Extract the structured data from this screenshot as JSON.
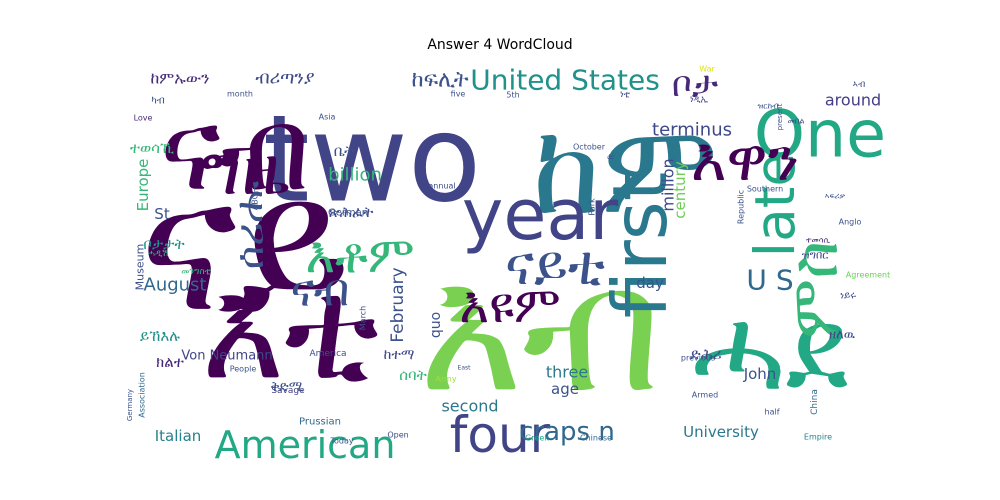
{
  "chart_data": {
    "type": "wordcloud",
    "title": "Answer 4 WordCloud",
    "colormap": "viridis",
    "background": "#ffffff",
    "words": [
      {
        "text": "ናይ",
        "weight": 1.0,
        "color": "#440154"
      },
      {
        "text": "two",
        "weight": 0.92,
        "color": "#414487"
      },
      {
        "text": "እቲ",
        "weight": 0.82,
        "color": "#440154"
      },
      {
        "text": "እብ",
        "weight": 0.8,
        "color": "#7ad151"
      },
      {
        "text": "ከም",
        "weight": 0.72,
        "color": "#2a788e"
      },
      {
        "text": "ናብ",
        "weight": 0.7,
        "color": "#440154"
      },
      {
        "text": "ሓደ",
        "weight": 0.66,
        "color": "#22a884"
      },
      {
        "text": "year",
        "weight": 0.6,
        "color": "#414487"
      },
      {
        "text": "One",
        "weight": 0.46,
        "color": "#22a884"
      },
      {
        "text": "four",
        "weight": 0.4,
        "color": "#414487"
      },
      {
        "text": "first",
        "weight": 0.4,
        "color": "#2a788e"
      },
      {
        "text": "late",
        "weight": 0.38,
        "color": "#22a884"
      },
      {
        "text": "እዋን",
        "weight": 0.36,
        "color": "#440154"
      },
      {
        "text": "ግዜ",
        "weight": 0.34,
        "color": "#440154"
      },
      {
        "text": "ናይቲ",
        "weight": 0.3,
        "color": "#3b528b"
      },
      {
        "text": "American",
        "weight": 0.3,
        "color": "#22a884"
      },
      {
        "text": "እዩም",
        "weight": 0.28,
        "color": "#440154"
      },
      {
        "text": "ምስ",
        "weight": 0.28,
        "color": "#35b779"
      },
      {
        "text": "United States",
        "weight": 0.2,
        "color": "#21918c"
      },
      {
        "text": "ቦታ",
        "weight": 0.2,
        "color": "#482878"
      },
      {
        "text": "እቶም",
        "weight": 0.24,
        "color": "#35b779"
      },
      {
        "text": "ናብ ",
        "weight": 0.26,
        "color": "#3b528b"
      },
      {
        "text": "ሰሪሑ",
        "weight": 0.22,
        "color": "#3b528b"
      },
      {
        "text": "craps n",
        "weight": 0.18,
        "color": "#31688e"
      },
      {
        "text": "U S",
        "weight": 0.17,
        "color": "#31688e"
      },
      {
        "text": "ከፍሊት",
        "weight": 0.13,
        "color": "#3b528b"
      },
      {
        "text": "ብሪጣንያ",
        "weight": 0.11,
        "color": "#3e4989"
      },
      {
        "text": "ከምኡውን",
        "weight": 0.1,
        "color": "#472c7a"
      },
      {
        "text": "billion",
        "weight": 0.1,
        "color": "#35b779"
      },
      {
        "text": "August",
        "weight": 0.1,
        "color": "#31688e"
      },
      {
        "text": "February",
        "weight": 0.1,
        "color": "#3b528b"
      },
      {
        "text": "terminus",
        "weight": 0.1,
        "color": "#3e4989"
      },
      {
        "text": "around",
        "weight": 0.09,
        "color": "#433e85"
      },
      {
        "text": "Europe",
        "weight": 0.09,
        "color": "#35b779"
      },
      {
        "text": "million",
        "weight": 0.09,
        "color": "#3e4989"
      },
      {
        "text": "century",
        "weight": 0.08,
        "color": "#6ece58"
      },
      {
        "text": "three",
        "weight": 0.08,
        "color": "#2a788e"
      },
      {
        "text": "second",
        "weight": 0.08,
        "color": "#2a788e"
      },
      {
        "text": "age",
        "weight": 0.08,
        "color": "#3b528b"
      },
      {
        "text": "day",
        "weight": 0.08,
        "color": "#3b528b"
      },
      {
        "text": "Italian",
        "weight": 0.08,
        "color": "#26828e"
      },
      {
        "text": "University",
        "weight": 0.08,
        "color": "#2a788e"
      },
      {
        "text": "John",
        "weight": 0.08,
        "color": "#3b528b"
      },
      {
        "text": "quo",
        "weight": 0.08,
        "color": "#3b528b"
      },
      {
        "text": "Von Neumann",
        "weight": 0.06,
        "color": "#414487"
      },
      {
        "text": "Museum",
        "weight": 0.05,
        "color": "#3b528b"
      },
      {
        "text": "German",
        "weight": 0.05,
        "color": "#3b528b"
      },
      {
        "text": "Prussian",
        "weight": 0.05,
        "color": "#31688e"
      },
      {
        "text": "America",
        "weight": 0.05,
        "color": "#3b528b"
      },
      {
        "text": "Savage",
        "weight": 0.05,
        "color": "#433e85"
      },
      {
        "text": "Armed",
        "weight": 0.05,
        "color": "#3b528b"
      },
      {
        "text": "China",
        "weight": 0.04,
        "color": "#31688e"
      },
      {
        "text": "Empire",
        "weight": 0.04,
        "color": "#26828e"
      },
      {
        "text": "Greek",
        "weight": 0.04,
        "color": "#1fa187"
      },
      {
        "text": "Chinese",
        "weight": 0.04,
        "color": "#31688e"
      },
      {
        "text": "Open",
        "weight": 0.04,
        "color": "#3e4989"
      },
      {
        "text": "Today",
        "weight": 0.04,
        "color": "#3b528b"
      },
      {
        "text": "People",
        "weight": 0.04,
        "color": "#3b528b"
      },
      {
        "text": "Army",
        "weight": 0.04,
        "color": "#a0da39"
      },
      {
        "text": "March",
        "weight": 0.04,
        "color": "#3b528b"
      },
      {
        "text": "Asia",
        "weight": 0.04,
        "color": "#3b528b"
      },
      {
        "text": "Love",
        "weight": 0.04,
        "color": "#482878"
      },
      {
        "text": "month",
        "weight": 0.04,
        "color": "#3b528b"
      },
      {
        "text": "annual",
        "weight": 0.04,
        "color": "#3e4989"
      },
      {
        "text": "October",
        "weight": 0.04,
        "color": "#3b528b"
      },
      {
        "text": "5th",
        "weight": 0.04,
        "color": "#3b528b"
      },
      {
        "text": "five",
        "weight": 0.04,
        "color": "#3b528b"
      },
      {
        "text": "War",
        "weight": 0.04,
        "color": "#dde318"
      },
      {
        "text": "Park",
        "weight": 0.04,
        "color": "#3b528b"
      },
      {
        "text": "ft",
        "weight": 0.04,
        "color": "#3b528b"
      },
      {
        "text": "present",
        "weight": 0.03,
        "color": "#3b528b"
      },
      {
        "text": "Southern",
        "weight": 0.03,
        "color": "#3b528b"
      },
      {
        "text": "Republic",
        "weight": 0.04,
        "color": "#3b528b"
      },
      {
        "text": "Agreement",
        "weight": 0.04,
        "color": "#6ece58"
      },
      {
        "text": "Anglo",
        "weight": 0.04,
        "color": "#3b528b"
      },
      {
        "text": "ABC",
        "weight": 0.04,
        "color": "#3b528b"
      },
      {
        "text": "Germany",
        "weight": 0.04,
        "color": "#3b528b"
      },
      {
        "text": "Association",
        "weight": 0.03,
        "color": "#31688e"
      },
      {
        "text": "previous",
        "weight": 0.03,
        "color": "#3b528b"
      },
      {
        "text": "East",
        "weight": 0.03,
        "color": "#3b528b"
      },
      {
        "text": "half",
        "weight": 0.03,
        "color": "#3b528b"
      },
      {
        "text": "St",
        "weight": 0.04,
        "color": "#3b528b"
      },
      {
        "text": "ቦታታት",
        "weight": 0.06,
        "color": "#21918c"
      },
      {
        "text": "ይኸእሉ",
        "weight": 0.06,
        "color": "#21918c"
      },
      {
        "text": "ክልተ",
        "weight": 0.06,
        "color": "#482878"
      },
      {
        "text": "ተወሳኺ",
        "weight": 0.06,
        "color": "#35b779"
      },
      {
        "text": "ቤት",
        "weight": 0.06,
        "color": "#3b528b"
      },
      {
        "text": "ጽሕፈት",
        "weight": 0.06,
        "color": "#3e4989"
      },
      {
        "text": "ቅድሚ",
        "weight": 0.06,
        "color": "#3b528b"
      },
      {
        "text": "ሰባት",
        "weight": 0.06,
        "color": "#35b779"
      },
      {
        "text": "ከተማ",
        "weight": 0.06,
        "color": "#3e4989"
      },
      {
        "text": "ድሕሪ",
        "weight": 0.06,
        "color": "#3e4989"
      },
      {
        "text": "ዘለዉ",
        "weight": 0.06,
        "color": "#3e4989"
      },
      {
        "text": "ዝግበር",
        "weight": 0.06,
        "color": "#3e4989"
      },
      {
        "text": "ነይሩ",
        "weight": 0.06,
        "color": "#3e4989"
      },
      {
        "text": "ነቲ",
        "weight": 0.06,
        "color": "#3e4989"
      },
      {
        "text": "ነዲኢ",
        "weight": 0.05,
        "color": "#3e4989"
      },
      {
        "text": "ኣብ",
        "weight": 0.05,
        "color": "#3e4989"
      },
      {
        "text": "ካብ",
        "weight": 0.05,
        "color": "#3b528b"
      },
      {
        "text": "ሓዲሽ",
        "weight": 0.05,
        "color": "#35b779"
      },
      {
        "text": "መንግስቲ",
        "weight": 0.03,
        "color": "#35b779"
      },
      {
        "text": "ተመሳሲ",
        "weight": 0.03,
        "color": "#482878"
      },
      {
        "text": "ኣፍሪቃ",
        "weight": 0.03,
        "color": "#3b528b"
      },
      {
        "text": "ዝርከብ",
        "weight": 0.04,
        "color": "#3b528b"
      },
      {
        "text": "መበል",
        "weight": 0.04,
        "color": "#3b528b"
      },
      {
        "text": "ዓመት",
        "weight": 0.04,
        "color": "#3b528b"
      },
      {
        "text": "ንጉስ",
        "weight": 0.04,
        "color": "#3b528b"
      }
    ]
  }
}
